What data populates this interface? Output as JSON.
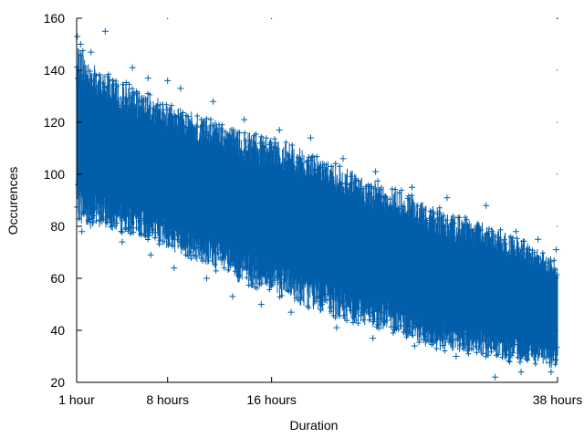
{
  "chart_data": {
    "type": "scatter",
    "title": "",
    "xlabel": "Duration",
    "ylabel": "Occurences",
    "x_unit": "hours",
    "xlim": [
      1,
      38
    ],
    "ylim": [
      20,
      160
    ],
    "x_ticks": [
      {
        "value": 1,
        "label": "1 hour"
      },
      {
        "value": 8,
        "label": "8 hours"
      },
      {
        "value": 16,
        "label": "16 hours"
      },
      {
        "value": 38,
        "label": "38 hours"
      }
    ],
    "y_ticks": [
      20,
      40,
      60,
      80,
      100,
      120,
      140,
      160
    ],
    "marker": "plus",
    "color": "#005eaa",
    "grid": false,
    "legend": "none",
    "series": [
      {
        "x": [
          1,
          1.5,
          2,
          3,
          4,
          5,
          6,
          7,
          8,
          10,
          12,
          14,
          16,
          18,
          20,
          22,
          24,
          26,
          28,
          30,
          32,
          34,
          36,
          37,
          38
        ],
        "upper": [
          150,
          148,
          143,
          140,
          137,
          135,
          132,
          130,
          127,
          124,
          120,
          117,
          114,
          111,
          106,
          102,
          98,
          94,
          89,
          85,
          82,
          78,
          73,
          70,
          67
        ],
        "lower": [
          83,
          80,
          79,
          79,
          78,
          77,
          75,
          74,
          71,
          67,
          62,
          57,
          54,
          50,
          46,
          43,
          41,
          38,
          33,
          31,
          30,
          28,
          27,
          26,
          25
        ],
        "center": [
          114,
          113,
          112,
          110,
          108,
          106,
          104,
          102,
          99,
          96,
          92,
          88,
          84,
          80,
          76,
          73,
          69,
          65,
          62,
          58,
          55,
          52,
          48,
          46,
          44
        ]
      }
    ],
    "outliers": [
      {
        "x": 1.05,
        "y": 153
      },
      {
        "x": 1.3,
        "y": 150
      },
      {
        "x": 2.1,
        "y": 147
      },
      {
        "x": 3.2,
        "y": 155
      },
      {
        "x": 5.3,
        "y": 141
      },
      {
        "x": 6.5,
        "y": 137
      },
      {
        "x": 8.0,
        "y": 136
      },
      {
        "x": 9.0,
        "y": 133
      },
      {
        "x": 11.5,
        "y": 128
      },
      {
        "x": 13.9,
        "y": 121
      },
      {
        "x": 16.6,
        "y": 117
      },
      {
        "x": 19.0,
        "y": 114
      },
      {
        "x": 21.5,
        "y": 106
      },
      {
        "x": 24.0,
        "y": 101
      },
      {
        "x": 26.8,
        "y": 95
      },
      {
        "x": 29.5,
        "y": 91
      },
      {
        "x": 32.5,
        "y": 88
      },
      {
        "x": 34.8,
        "y": 78
      },
      {
        "x": 36.5,
        "y": 75
      },
      {
        "x": 37.9,
        "y": 71
      },
      {
        "x": 1.4,
        "y": 78
      },
      {
        "x": 4.5,
        "y": 74
      },
      {
        "x": 6.7,
        "y": 69
      },
      {
        "x": 8.5,
        "y": 64
      },
      {
        "x": 11.0,
        "y": 60
      },
      {
        "x": 13.0,
        "y": 53
      },
      {
        "x": 15.2,
        "y": 50
      },
      {
        "x": 17.5,
        "y": 47
      },
      {
        "x": 21.0,
        "y": 41
      },
      {
        "x": 23.8,
        "y": 37
      },
      {
        "x": 27.0,
        "y": 34
      },
      {
        "x": 30.2,
        "y": 30
      },
      {
        "x": 33.2,
        "y": 22
      },
      {
        "x": 35.2,
        "y": 24
      },
      {
        "x": 37.5,
        "y": 24
      }
    ]
  }
}
